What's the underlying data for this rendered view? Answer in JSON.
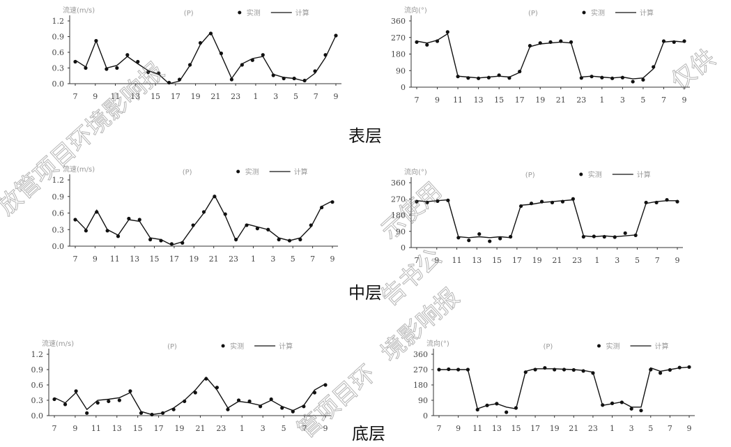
{
  "layer_titles": [
    "表层",
    "中层",
    "底层"
  ],
  "watermark": {
    "lines": [
      "仅供",
      "放管项目环境影响报",
      "示使用",
      "告书公",
      "境影响报",
      "管项目环"
    ]
  },
  "colors": {
    "line": "#111111",
    "axis": "#333333",
    "marker": "#111111"
  },
  "chart_data": [
    {
      "type": "line",
      "panel": "surface-speed",
      "ylabel": "流速(m/s)",
      "ylim": [
        0,
        1.2
      ],
      "yticks": [
        "0.0",
        "0.3",
        "0.6",
        "0.9",
        "1.2"
      ],
      "xticks": [
        "7",
        "9",
        "11",
        "13",
        "15",
        "17",
        "19",
        "21",
        "23",
        "1",
        "3",
        "5",
        "7",
        "9"
      ],
      "legend": {
        "tide": "(P)",
        "measured": "实测",
        "simulated": "计算"
      },
      "series": [
        {
          "name": "计算",
          "role": "line",
          "values": [
            0.45,
            0.32,
            0.82,
            0.3,
            0.35,
            0.52,
            0.38,
            0.25,
            0.18,
            0.0,
            0.05,
            0.35,
            0.75,
            0.98,
            0.55,
            0.1,
            0.38,
            0.48,
            0.52,
            0.18,
            0.12,
            0.1,
            0.05,
            0.2,
            0.5,
            0.92
          ]
        },
        {
          "name": "实测",
          "role": "points",
          "values": [
            0.42,
            0.3,
            0.82,
            0.28,
            0.3,
            0.55,
            0.42,
            0.22,
            0.2,
            0.02,
            0.08,
            0.36,
            0.78,
            0.96,
            0.58,
            0.08,
            0.36,
            0.45,
            0.55,
            0.16,
            0.1,
            0.1,
            0.06,
            0.24,
            0.55,
            0.92
          ]
        }
      ]
    },
    {
      "type": "line",
      "panel": "surface-direction",
      "ylabel": "流向(°)",
      "ylim": [
        0,
        360
      ],
      "yticks": [
        "0",
        "90",
        "180",
        "270",
        "360"
      ],
      "xticks": [
        "7",
        "9",
        "11",
        "13",
        "15",
        "17",
        "19",
        "21",
        "23",
        "1",
        "3",
        "5",
        "7",
        "9"
      ],
      "legend": {
        "tide": "(P)",
        "measured": "实测",
        "simulated": "计算"
      },
      "series": [
        {
          "name": "计算",
          "role": "line",
          "values": [
            250,
            240,
            255,
            290,
            60,
            55,
            50,
            55,
            60,
            55,
            80,
            220,
            235,
            240,
            245,
            240,
            55,
            60,
            55,
            50,
            55,
            45,
            50,
            100,
            245,
            250,
            245
          ]
        },
        {
          "name": "实测",
          "role": "points",
          "values": [
            245,
            230,
            250,
            300,
            58,
            50,
            48,
            52,
            65,
            50,
            85,
            225,
            240,
            245,
            250,
            245,
            50,
            58,
            52,
            48,
            52,
            30,
            40,
            110,
            250,
            245,
            250
          ]
        }
      ]
    },
    {
      "type": "line",
      "panel": "middle-speed",
      "ylabel": "流速(m/s)",
      "ylim": [
        0,
        1.2
      ],
      "yticks": [
        "0.0",
        "0.3",
        "0.6",
        "0.9",
        "1.2"
      ],
      "xticks": [
        "7",
        "9",
        "11",
        "13",
        "15",
        "17",
        "19",
        "21",
        "23",
        "1",
        "3",
        "5",
        "7",
        "9"
      ],
      "legend": {
        "tide": "(P)",
        "measured": "实测",
        "simulated": "计算"
      },
      "series": [
        {
          "name": "计算",
          "role": "line",
          "values": [
            0.5,
            0.3,
            0.65,
            0.3,
            0.2,
            0.48,
            0.45,
            0.15,
            0.12,
            0.02,
            0.08,
            0.35,
            0.6,
            0.92,
            0.55,
            0.1,
            0.4,
            0.35,
            0.3,
            0.15,
            0.1,
            0.15,
            0.35,
            0.72,
            0.82
          ]
        },
        {
          "name": "实测",
          "role": "points",
          "values": [
            0.48,
            0.28,
            0.62,
            0.28,
            0.18,
            0.5,
            0.48,
            0.12,
            0.1,
            0.04,
            0.06,
            0.38,
            0.62,
            0.9,
            0.58,
            0.12,
            0.38,
            0.32,
            0.3,
            0.12,
            0.1,
            0.12,
            0.38,
            0.7,
            0.8
          ]
        }
      ]
    },
    {
      "type": "line",
      "panel": "middle-direction",
      "ylabel": "流向(°)",
      "ylim": [
        0,
        360
      ],
      "yticks": [
        "0",
        "90",
        "180",
        "270",
        "360"
      ],
      "xticks": [
        "7",
        "9",
        "11",
        "13",
        "15",
        "17",
        "19",
        "21",
        "23",
        "1",
        "3",
        "5",
        "7",
        "9"
      ],
      "legend": {
        "tide": "(P)",
        "measured": "实测",
        "simulated": "计算"
      },
      "series": [
        {
          "name": "计算",
          "role": "line",
          "values": [
            260,
            255,
            260,
            265,
            60,
            55,
            60,
            55,
            60,
            55,
            235,
            240,
            250,
            255,
            260,
            265,
            65,
            60,
            65,
            60,
            65,
            70,
            245,
            255,
            260,
            260
          ]
        },
        {
          "name": "实测",
          "role": "points",
          "values": [
            255,
            250,
            258,
            262,
            55,
            40,
            75,
            35,
            50,
            60,
            230,
            245,
            255,
            250,
            255,
            270,
            60,
            62,
            60,
            58,
            80,
            68,
            250,
            250,
            265,
            255
          ]
        }
      ]
    },
    {
      "type": "line",
      "panel": "bottom-speed",
      "ylabel": "流速(m/s)",
      "ylim": [
        0,
        1.2
      ],
      "yticks": [
        "0.0",
        "0.3",
        "0.6",
        "0.9",
        "1.2"
      ],
      "xticks": [
        "7",
        "9",
        "11",
        "13",
        "15",
        "17",
        "19",
        "21",
        "23",
        "1",
        "3",
        "5",
        "7",
        "9"
      ],
      "legend": {
        "tide": "(P)",
        "measured": "实测",
        "simulated": "计算"
      },
      "series": [
        {
          "name": "计算",
          "role": "line",
          "values": [
            0.35,
            0.25,
            0.45,
            0.12,
            0.3,
            0.32,
            0.35,
            0.45,
            0.08,
            0.02,
            0.05,
            0.15,
            0.3,
            0.5,
            0.75,
            0.5,
            0.15,
            0.28,
            0.25,
            0.2,
            0.3,
            0.18,
            0.1,
            0.2,
            0.5,
            0.62
          ]
        },
        {
          "name": "实测",
          "role": "points",
          "values": [
            0.32,
            0.22,
            0.48,
            0.05,
            0.25,
            0.28,
            0.3,
            0.48,
            0.05,
            0.02,
            0.05,
            0.12,
            0.28,
            0.45,
            0.72,
            0.55,
            0.12,
            0.3,
            0.28,
            0.18,
            0.32,
            0.15,
            0.08,
            0.18,
            0.45,
            0.6
          ]
        }
      ]
    },
    {
      "type": "line",
      "panel": "bottom-direction",
      "ylabel": "流向(°)",
      "ylim": [
        0,
        360
      ],
      "yticks": [
        "0",
        "90",
        "180",
        "270",
        "360"
      ],
      "xticks": [
        "7",
        "9",
        "11",
        "13",
        "15",
        "17",
        "19",
        "21",
        "23",
        "1",
        "3",
        "5",
        "7",
        "9"
      ],
      "legend": {
        "tide": "(P)",
        "measured": "实测",
        "simulated": "计算"
      },
      "series": [
        {
          "name": "计算",
          "role": "line",
          "values": [
            270,
            270,
            270,
            270,
            40,
            60,
            70,
            50,
            40,
            260,
            275,
            275,
            275,
            272,
            270,
            265,
            255,
            60,
            70,
            80,
            50,
            50,
            280,
            260,
            270,
            280,
            285
          ]
        },
        {
          "name": "实测",
          "role": "points",
          "values": [
            270,
            272,
            270,
            270,
            35,
            60,
            70,
            20,
            45,
            255,
            270,
            280,
            270,
            270,
            268,
            262,
            250,
            62,
            72,
            78,
            40,
            30,
            270,
            250,
            268,
            282,
            285
          ]
        }
      ]
    }
  ]
}
